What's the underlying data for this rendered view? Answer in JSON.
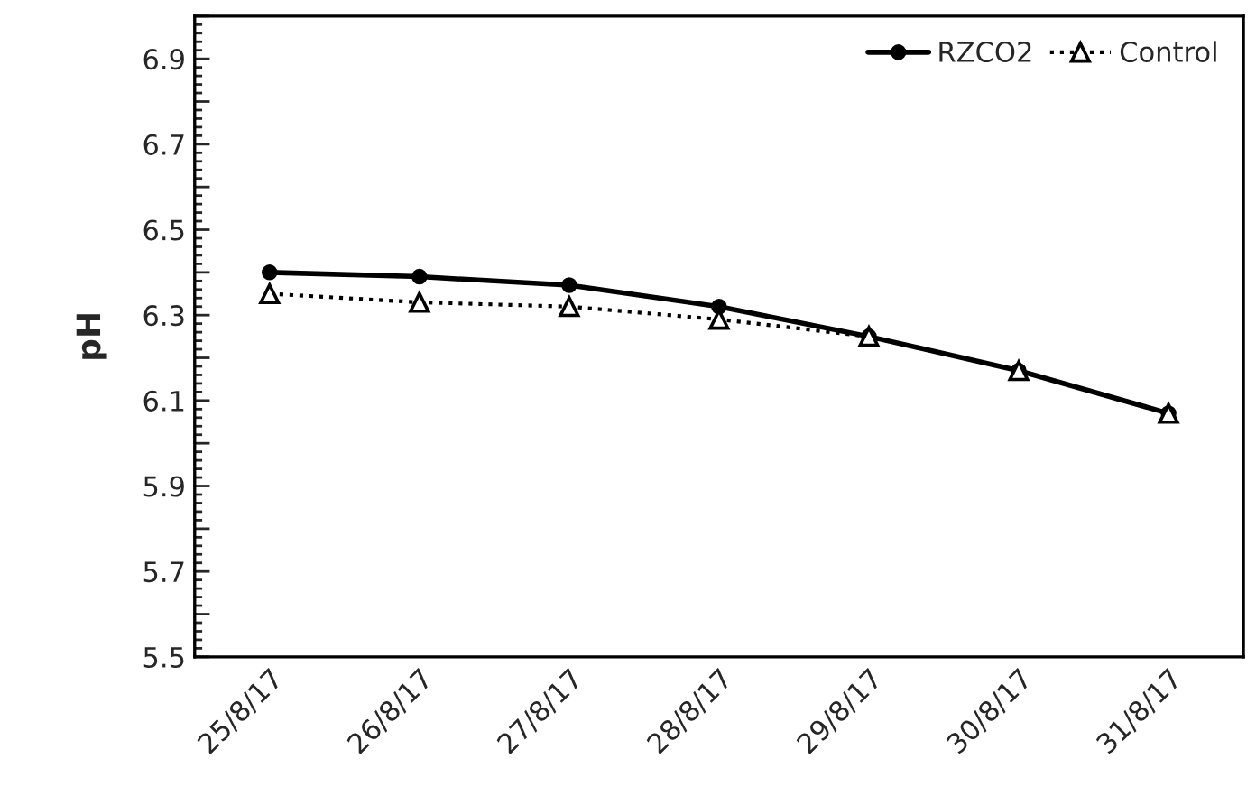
{
  "chart_data": {
    "type": "line",
    "ylabel": "pH",
    "categories": [
      "25/8/17",
      "26/8/17",
      "27/8/17",
      "28/8/17",
      "29/8/17",
      "30/8/17",
      "31/8/17"
    ],
    "series": [
      {
        "name": "RZCO2",
        "color": "#000000",
        "marker": "circle",
        "line_style": "solid",
        "values": [
          6.4,
          6.39,
          6.37,
          6.32,
          6.25,
          6.17,
          6.07
        ]
      },
      {
        "name": "Control",
        "color": "#000000",
        "marker": "triangle",
        "line_style": "dotted",
        "values": [
          6.35,
          6.33,
          6.32,
          6.29,
          6.25,
          6.17,
          6.07
        ]
      }
    ],
    "ylim": [
      5.5,
      7.0
    ],
    "yticks": [
      5.5,
      {
        "value": 5.6,
        "label": null
      },
      5.7,
      {
        "value": 5.8,
        "label": null
      },
      5.9,
      {
        "value": 6.0,
        "label": null
      },
      6.1,
      {
        "value": 6.2,
        "label": null
      },
      6.3,
      {
        "value": 6.4,
        "label": null
      },
      6.5,
      {
        "value": 6.6,
        "label": null
      },
      6.7,
      {
        "value": 6.8,
        "label": null
      },
      6.9,
      {
        "value": 7.0,
        "label": null
      }
    ],
    "grid": false,
    "legend": "top right"
  }
}
